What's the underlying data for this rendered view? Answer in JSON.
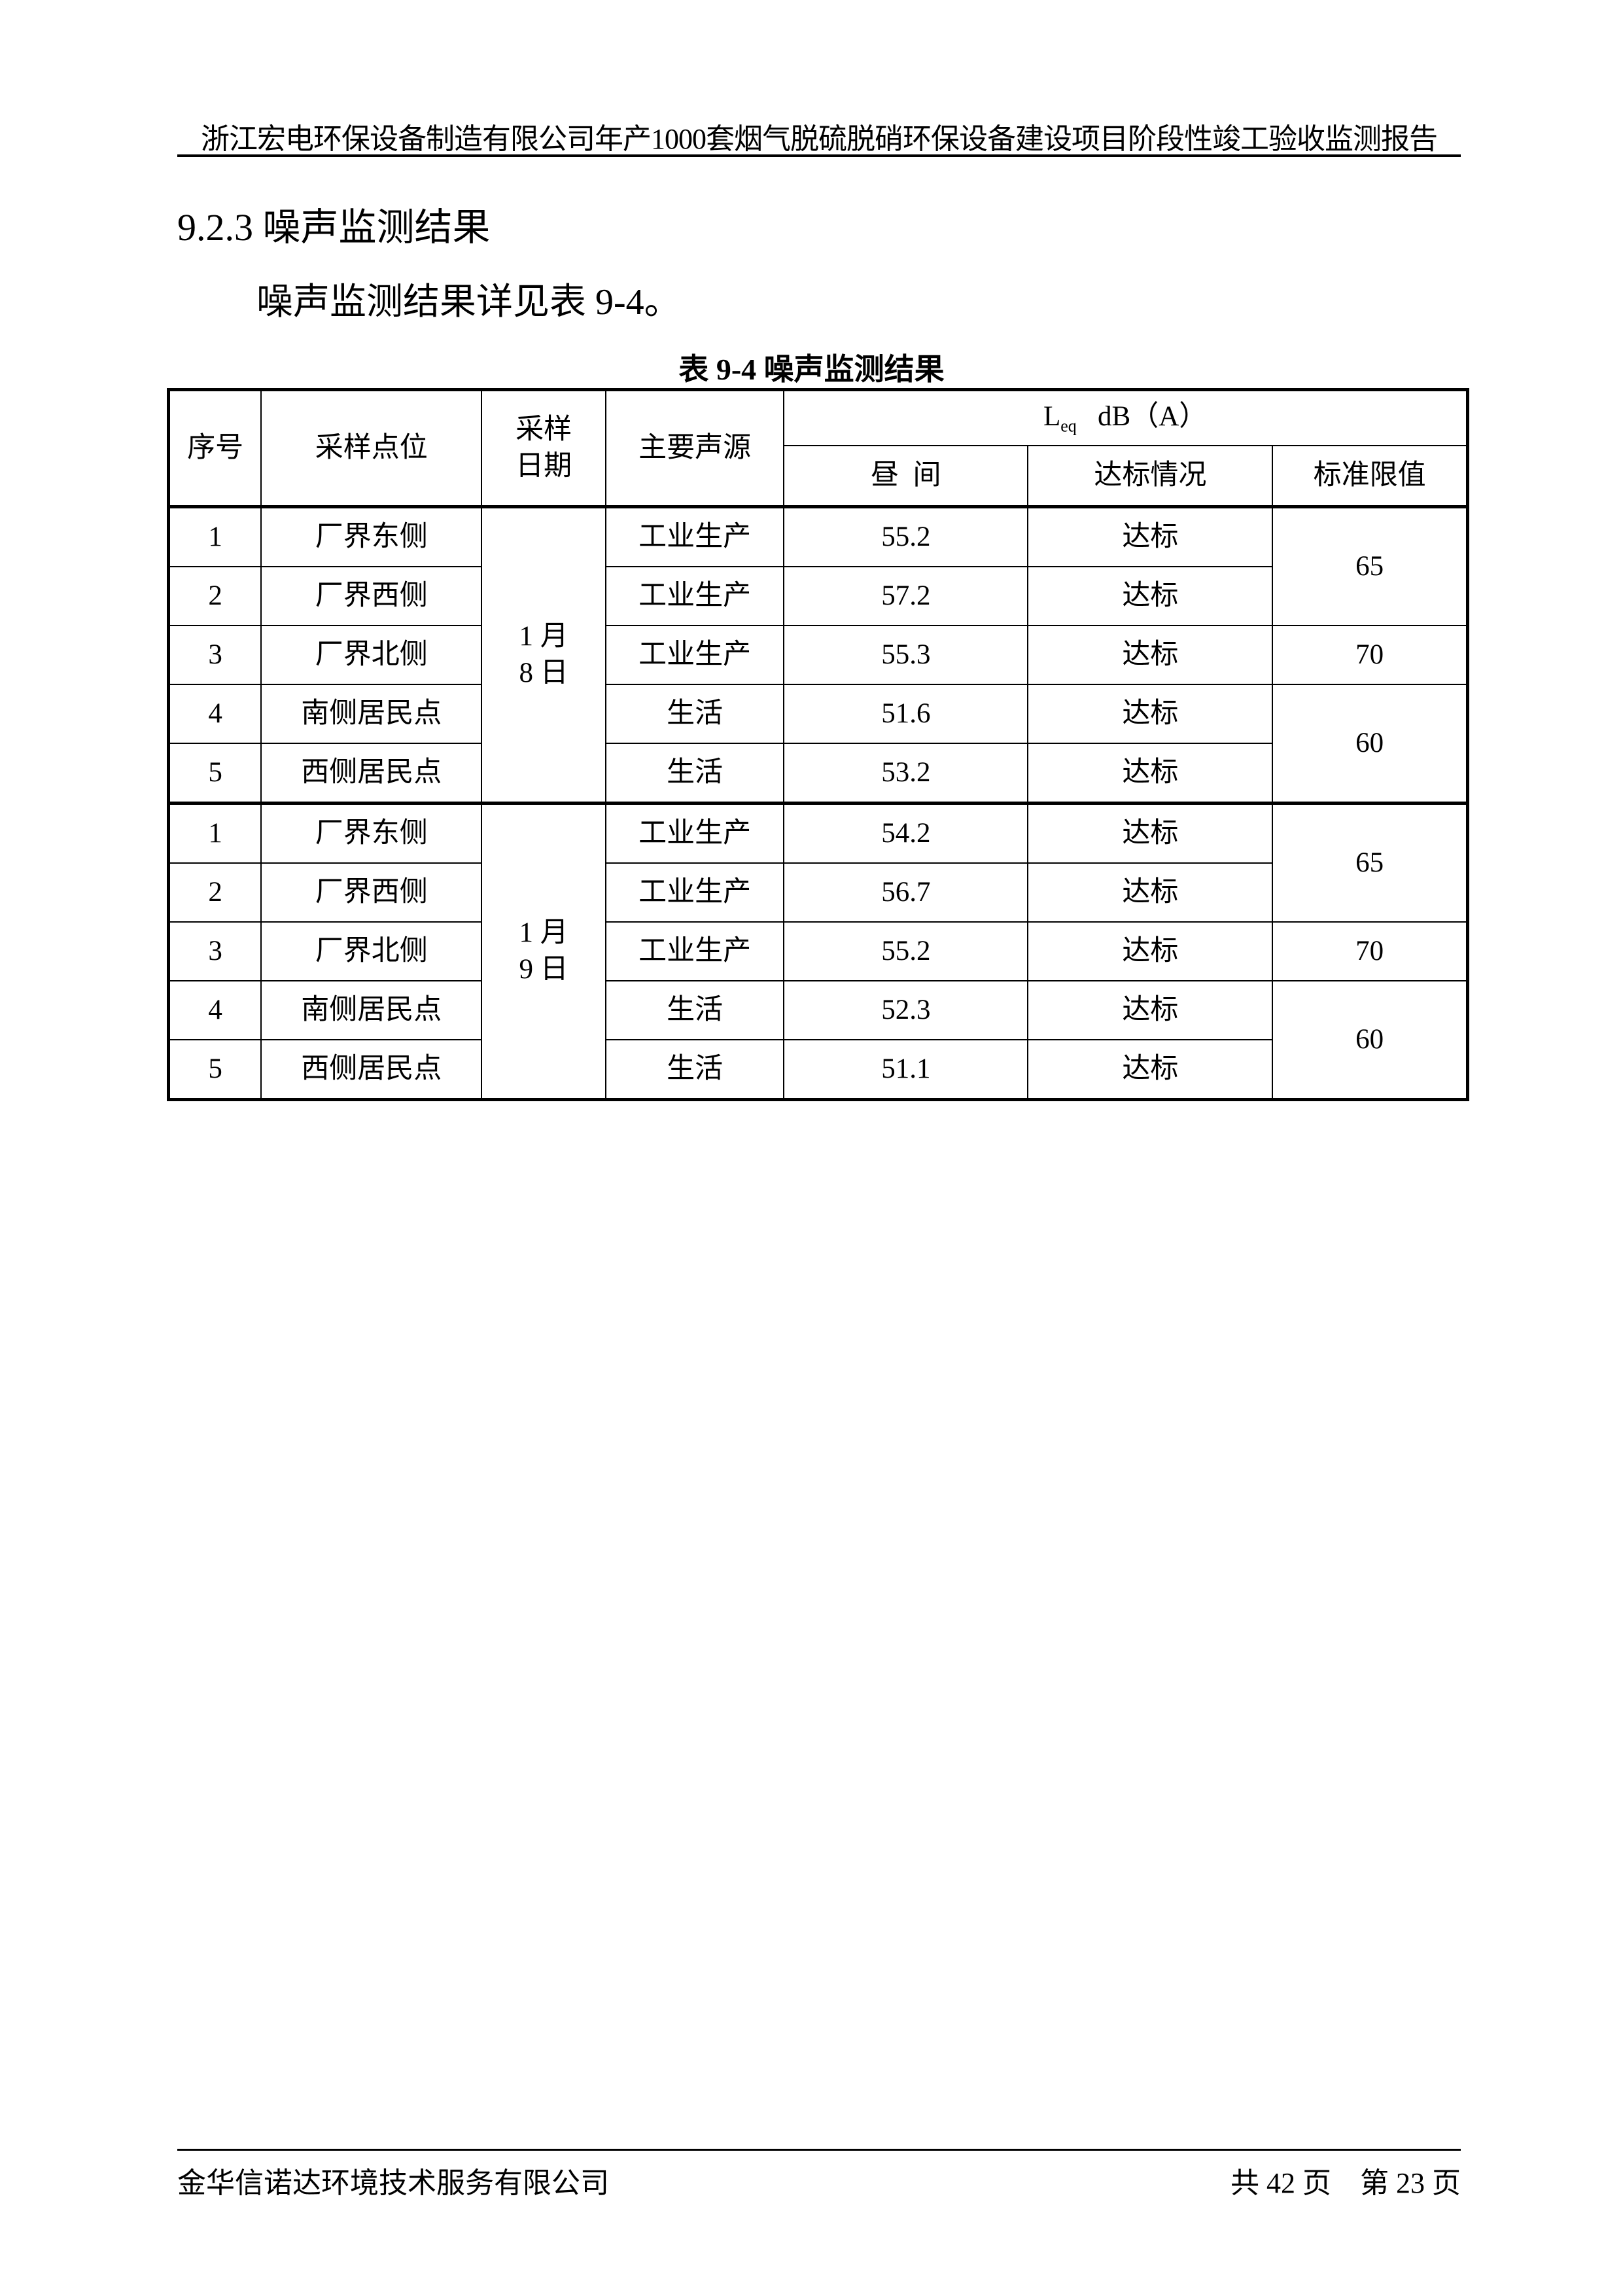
{
  "header": {
    "title": "浙江宏电环保设备制造有限公司年产1000套烟气脱硫脱硝环保设备建设项目阶段性竣工验收监测报告"
  },
  "section": {
    "title": "9.2.3  噪声监测结果",
    "paragraph": "噪声监测结果详见表 9-4。"
  },
  "table": {
    "caption": "表 9-4    噪声监测结果",
    "headers": {
      "no": "序号",
      "site": "采样点位",
      "date": "采样日期",
      "source": "主要声源",
      "leq_main": "L",
      "leq_sub": "eq",
      "leq_unit": "dB（A）",
      "day": "昼  间",
      "status": "达标情况",
      "limit": "标准限值"
    },
    "groups": [
      {
        "date": "1 月\n8 日",
        "rows": [
          {
            "no": "1",
            "site": "厂界东侧",
            "source": "工业生产",
            "day": "55.2",
            "status": "达标"
          },
          {
            "no": "2",
            "site": "厂界西侧",
            "source": "工业生产",
            "day": "57.2",
            "status": "达标"
          },
          {
            "no": "3",
            "site": "厂界北侧",
            "source": "工业生产",
            "day": "55.3",
            "status": "达标"
          },
          {
            "no": "4",
            "site": "南侧居民点",
            "source": "生活",
            "day": "51.6",
            "status": "达标"
          },
          {
            "no": "5",
            "site": "西侧居民点",
            "source": "生活",
            "day": "53.2",
            "status": "达标"
          }
        ],
        "limits": [
          "65",
          "70",
          "60"
        ]
      },
      {
        "date": "1 月\n9 日",
        "rows": [
          {
            "no": "1",
            "site": "厂界东侧",
            "source": "工业生产",
            "day": "54.2",
            "status": "达标"
          },
          {
            "no": "2",
            "site": "厂界西侧",
            "source": "工业生产",
            "day": "56.7",
            "status": "达标"
          },
          {
            "no": "3",
            "site": "厂界北侧",
            "source": "工业生产",
            "day": "55.2",
            "status": "达标"
          },
          {
            "no": "4",
            "site": "南侧居民点",
            "source": "生活",
            "day": "52.3",
            "status": "达标"
          },
          {
            "no": "5",
            "site": "西侧居民点",
            "source": "生活",
            "day": "51.1",
            "status": "达标"
          }
        ],
        "limits": [
          "65",
          "70",
          "60"
        ]
      }
    ]
  },
  "footer": {
    "company": "金华信诺达环境技术服务有限公司",
    "pages": "共 42 页    第 23 页"
  }
}
